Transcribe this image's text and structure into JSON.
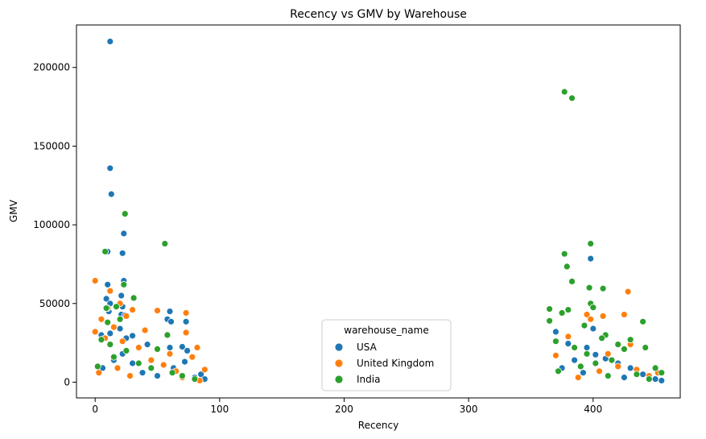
{
  "chart_data": {
    "type": "scatter",
    "title": "Recency vs GMV by Warehouse",
    "xlabel": "Recency",
    "ylabel": "GMV",
    "xlim": [
      -15,
      470
    ],
    "ylim": [
      -10000,
      227000
    ],
    "xticks": [
      0,
      100,
      200,
      300,
      400
    ],
    "yticks": [
      0,
      50000,
      100000,
      150000,
      200000
    ],
    "xtick_labels": [
      "0",
      "100",
      "200",
      "300",
      "400"
    ],
    "ytick_labels": [
      "0",
      "50000",
      "100000",
      "150000",
      "200000"
    ],
    "grid": false,
    "legend": {
      "title": "warehouse_name",
      "placement": "bottom-center"
    },
    "series": [
      {
        "name": "USA",
        "color": "#1f77b4",
        "points": [
          [
            12,
            216500
          ],
          [
            12,
            136000
          ],
          [
            13,
            119500
          ],
          [
            23,
            94500
          ],
          [
            22,
            82000
          ],
          [
            10,
            83000
          ],
          [
            23,
            64500
          ],
          [
            10,
            62000
          ],
          [
            21,
            55000
          ],
          [
            9,
            53000
          ],
          [
            12,
            50000
          ],
          [
            22,
            48000
          ],
          [
            11,
            45000
          ],
          [
            21,
            43000
          ],
          [
            24,
            42500
          ],
          [
            60,
            45000
          ],
          [
            58,
            40000
          ],
          [
            61,
            38500
          ],
          [
            73,
            38500
          ],
          [
            10,
            38000
          ],
          [
            20,
            34000
          ],
          [
            5,
            30000
          ],
          [
            12,
            31000
          ],
          [
            25,
            28000
          ],
          [
            30,
            29500
          ],
          [
            42,
            24000
          ],
          [
            60,
            22000
          ],
          [
            70,
            22500
          ],
          [
            74,
            20000
          ],
          [
            85,
            5000
          ],
          [
            6,
            9000
          ],
          [
            15,
            14000
          ],
          [
            22,
            18000
          ],
          [
            30,
            12000
          ],
          [
            38,
            6000
          ],
          [
            50,
            4000
          ],
          [
            63,
            9000
          ],
          [
            72,
            13000
          ],
          [
            80,
            3000
          ],
          [
            88,
            2000
          ],
          [
            398,
            78500
          ],
          [
            400,
            34000
          ],
          [
            370,
            32000
          ],
          [
            380,
            24500
          ],
          [
            395,
            22000
          ],
          [
            402,
            17500
          ],
          [
            410,
            15000
          ],
          [
            420,
            12000
          ],
          [
            430,
            9000
          ],
          [
            440,
            5000
          ],
          [
            450,
            2000
          ],
          [
            455,
            1000
          ],
          [
            375,
            9000
          ],
          [
            385,
            14000
          ],
          [
            392,
            6000
          ],
          [
            425,
            3000
          ]
        ]
      },
      {
        "name": "United Kingdom",
        "color": "#ff7f0e",
        "points": [
          [
            0,
            64500
          ],
          [
            12,
            58000
          ],
          [
            20,
            50000
          ],
          [
            10,
            47000
          ],
          [
            30,
            46000
          ],
          [
            50,
            45500
          ],
          [
            73,
            44000
          ],
          [
            25,
            42000
          ],
          [
            5,
            40000
          ],
          [
            15,
            35000
          ],
          [
            40,
            33000
          ],
          [
            0,
            32000
          ],
          [
            73,
            31500
          ],
          [
            8,
            28000
          ],
          [
            22,
            26000
          ],
          [
            35,
            22000
          ],
          [
            82,
            22000
          ],
          [
            60,
            18000
          ],
          [
            78,
            16000
          ],
          [
            45,
            14000
          ],
          [
            55,
            11000
          ],
          [
            88,
            8000
          ],
          [
            3,
            6000
          ],
          [
            18,
            9000
          ],
          [
            28,
            4000
          ],
          [
            65,
            7000
          ],
          [
            70,
            3000
          ],
          [
            84,
            1000
          ],
          [
            428,
            57500
          ],
          [
            395,
            43000
          ],
          [
            425,
            43000
          ],
          [
            408,
            42000
          ],
          [
            398,
            40000
          ],
          [
            380,
            29000
          ],
          [
            430,
            24000
          ],
          [
            370,
            17000
          ],
          [
            412,
            18000
          ],
          [
            420,
            10000
          ],
          [
            435,
            8000
          ],
          [
            445,
            4000
          ],
          [
            452,
            6000
          ],
          [
            388,
            3000
          ],
          [
            405,
            7000
          ]
        ]
      },
      {
        "name": "India",
        "color": "#2ca02c",
        "points": [
          [
            24,
            107000
          ],
          [
            56,
            88000
          ],
          [
            8,
            83000
          ],
          [
            23,
            62000
          ],
          [
            31,
            53500
          ],
          [
            17,
            48000
          ],
          [
            9,
            47000
          ],
          [
            20,
            40000
          ],
          [
            10,
            38000
          ],
          [
            58,
            30000
          ],
          [
            5,
            27000
          ],
          [
            25,
            20000
          ],
          [
            50,
            21000
          ],
          [
            15,
            16000
          ],
          [
            35,
            12000
          ],
          [
            45,
            9000
          ],
          [
            62,
            6000
          ],
          [
            70,
            4000
          ],
          [
            80,
            2000
          ],
          [
            2,
            10000
          ],
          [
            12,
            24000
          ],
          [
            377,
            184500
          ],
          [
            383,
            180500
          ],
          [
            377,
            81500
          ],
          [
            379,
            73500
          ],
          [
            383,
            64000
          ],
          [
            398,
            88000
          ],
          [
            397,
            60000
          ],
          [
            408,
            59500
          ],
          [
            375,
            44000
          ],
          [
            380,
            46000
          ],
          [
            365,
            46500
          ],
          [
            398,
            50000
          ],
          [
            400,
            47500
          ],
          [
            365,
            39000
          ],
          [
            393,
            36000
          ],
          [
            430,
            27000
          ],
          [
            440,
            38500
          ],
          [
            442,
            22000
          ],
          [
            420,
            24000
          ],
          [
            425,
            21000
          ],
          [
            410,
            30000
          ],
          [
            407,
            28000
          ],
          [
            370,
            26000
          ],
          [
            385,
            22000
          ],
          [
            395,
            18000
          ],
          [
            415,
            14000
          ],
          [
            450,
            9000
          ],
          [
            455,
            6000
          ],
          [
            435,
            5000
          ],
          [
            390,
            10000
          ],
          [
            402,
            12000
          ],
          [
            372,
            7000
          ],
          [
            412,
            4000
          ],
          [
            445,
            2000
          ]
        ]
      }
    ]
  }
}
